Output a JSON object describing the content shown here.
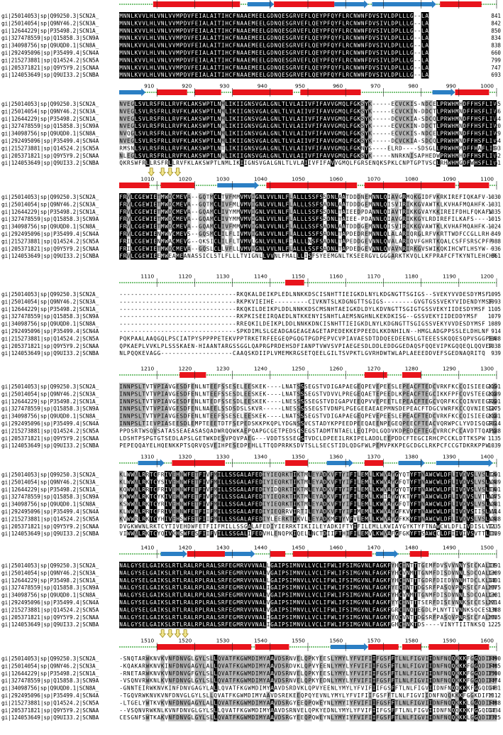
{
  "colors": {
    "helix": "#e8141c",
    "strand": "#2b7fc4",
    "coil": "#2ca02c",
    "identical": "#000000",
    "similar": "#b4b4b4",
    "arrow": "#f2e58a",
    "arrow_stroke": "#9c8a1e"
  },
  "sequence_ids": [
    "gi|25014053|sp|Q99250.3|SCN2A_",
    "gi|25014054|sp|Q9NY46.2|SCN3A_",
    "gi|12644229|sp|P35498.2|SCN1A_",
    "gi|327478559|sp|Q15858.3|SCN9A",
    "gi|34098756|sp|Q9UQD0.1|SCN8A_",
    "gi|292495096|sp|P35499.4|SCN4A",
    "gi|215273881|sp|Q14524.2|SCN5A",
    "gi|205371821|sp|Q9Y5Y9.2|SCNAA",
    "gi|124053649|sp|Q9UI33.2|SCNBA"
  ],
  "blocks": [
    {
      "ruler": [
        "810",
        "820",
        "830",
        "840",
        "850",
        "860",
        "870",
        "880",
        "890",
        "900"
      ],
      "rows": [
        "MNNLKVVLHLVNLVVMPDVFEIALAITIHCFNAAEMEELGDNQESGRVEFLQEYPFQYFLRCNWNFDVSIVLDPLLLG--LA",
        "MNNLKVVLHLVNLVVMPDVFEIALAITIHCFNAAEMEELGDNQESGRVEFLQEYPFQYFLRCNWNFDVSIVLDPLLLG--LA",
        "MNNLKVVLHLVNLVVMPDVFEIALAITIHCFNAAEMEELGDNQESGRVEFLQEYPFQYFLRCNWNFDVSIVLDPLLLG--LA",
        "MNNLKVVLHLVNLVVMPDVFEIALAITIHCFNAAEMEELGDNQESGRVEFLQEYPFQYFLRCNWNFDVSIVLDPLLLG--LA",
        "MNNLKVVLHLVNLVVMPDVFEIALAITIHCFNAAEMEELGDNQESGRVEFLQEYPFQYFLRCNWNFDVSIVLDPLLLG--LA",
        "MNNLKVVLHLVNLVVMPDVFEIALAITIHCFNAAEMEELGDNQESGRVEFLQEYPFQYFLRCNWNFDVSIVLDPLLLG--LA",
        "MNNLKVVLHLVNLVVMPDVFEIALAITIHCFNAAEMEELGDNQESGRVEFLQEYPFQYFLRCNWNFDVSIVLDPLLLG--LA",
        "MNNLKVVLHLVNLVVMPDVFEIALAITIHCFNAAEMEELGDNQESGRVEFLQEYPFQYFLRCNWNFDVSIVLDPLLLG--LA",
        "MNNLKVVLHLVNLVVMPDVFEIALAITIHCFNAAEMEELGDNQESGRVEFLQEYPFQYFLRCNWNFDVSIVLDPLLLG--LA"
      ],
      "end_numbers": [
        "841",
        "842",
        "850",
        "834",
        "838",
        "660",
        "799",
        "747",
        "693"
      ],
      "structure": [
        {
          "type": "helix",
          "from": 810,
          "to": 832
        },
        {
          "type": "strand",
          "from": 835,
          "to": 841
        },
        {
          "type": "helix",
          "from": 842,
          "to": 857
        },
        {
          "type": "strand",
          "from": 858,
          "to": 866
        },
        {
          "type": "strand",
          "from": 868,
          "to": 884
        },
        {
          "type": "helix",
          "from": 886,
          "to": 896
        }
      ],
      "arrows": []
    },
    {
      "ruler": [
        "910",
        "920",
        "930",
        "940",
        "950",
        "960",
        "970",
        "980",
        "990",
        "1000"
      ],
      "rows": [
        "NVEGLSVLRSFRLLRVFKLAKSWPTLNMLIKIIGNSVGALGNLTLVLAIIVFIFAVVGMQLFGKSYK-----ECVCKIS-NDCELPRWHMHDFFHSFLIV",
        "NVEGLSVLRSFRLLRVFKLAKSWPTLNMLIKIIGNSVGALGNLTLVLAIIVFIFAVVGMQLFGKSYK-----ECVCKIN-DDCTLPRWHMNDFFHSFLIV",
        "NVEGLSVLRSFRLLRVFKLAKSWPTLNMLIKIIGNSVGALGNLTLVLAIIVFIFAVVGMQLFGKSYK-----DCVCKIA-SDCQLPRWHMNDFFHSFLIV",
        "NVEGLSVLRSFRLLRVFKLAKSWPTLNMLIKIIGNSVGALGNLTLVLAIIVFIFAVVGMQLFGKSYK-----ECVCKIN-DDCTLPRWHMNDFFHSFLIV",
        "NVQGLSVLRSFRLLRVFKLAKSWPTLNMLIKIIGNSVGALGNLTLVLAIIVFIFAVVGMQLFGKSYK-----ECVCKIS-NDCELPRWHMNDFFHSFLIV",
        "NVEGLSVLRSFRLLRVFKLAKSWPTLNMLIKIIGNSVGALGNLTLVLAIIVFIFAVVGMQLFGKSYK-----DCVCKIA-SDCQLPRWHMNDFFHSFLIV",
        "RMSNLSVLRSFRLLRVFKLAKSWPTLNTLIKIIGNSVGALGNLTLVLAIIVFIFAVVGMQLFGKNYS----ELRD----SDSGLLPRWHMMDFFHAFLII",
        "NLEGLSVLRSFRLLRVFKLAKSWPTLNMLIKIIGNSVGALGNLTLVLAIIVFIFAVVGMQLFGKSYK-----NNRKNISAPHEDWPRWHMHDFFHSFLIV",
        "QKRSWFRLLRSFRLLRVFKLAKSWPTLNMLIKIIGNSVGALGNLTLVLAIIVFIFAVVGMQLFGRSENQKSPKLCNPTGPTVSCLRHWHMGDFWHSFLIV"
      ],
      "end_numbers": [
        "935",
        "936",
        "944",
        "920",
        "929",
        "754",
        "893",
        "842",
        "761"
      ],
      "structure": [
        {
          "type": "strand",
          "from": 901,
          "to": 907
        },
        {
          "type": "helix",
          "from": 911,
          "to": 918
        },
        {
          "type": "helix",
          "from": 921,
          "to": 927
        },
        {
          "type": "helix",
          "from": 931,
          "to": 946
        },
        {
          "type": "helix",
          "from": 949,
          "to": 964
        },
        {
          "type": "strand",
          "from": 984,
          "to": 989
        },
        {
          "type": "helix",
          "from": 990,
          "to": 998
        }
      ],
      "arrows": [
        909,
        912,
        914,
        916
      ]
    },
    {
      "ruler": [
        "1010",
        "1020",
        "1030",
        "1040",
        "1050",
        "1060",
        "1070",
        "1080",
        "1090",
        "1100"
      ],
      "rows": [
        "FRVLCGEWIETMWDCMEVA--GQTMCLTVFMMVMVIGNLVVLNLFLALLLSSFSSDNLAATDDDNEMNNLQIAVGRMQKGIDFVKRKIREFIQKAFV--",
        "FRVLCGEWIETMWDCMEVA--GQTMCLIVFMLVMVIGNLVVLNLFLALLLSSFSADNLAATDDDGEMNNLQISVIRIKKGVAWTKLKVHAFMQAHFK--",
        "FRVLCGEWIETMWDCMEVA--GQAMCLIVYMMVMVIGNLVVLNLFLALLLSSFSSDNLTAIEEDPDANNLQIAVTRIKKGVAYKKIREIFDHLFQKAFV",
        "FRVLCGEWIETMWDCMEVA--GQAMCLIVYMMVMVIGNLVVLNLFLALLLSSFSSDNLTAIEE-PDANNLQIAVGRIKKGYLRDIREFILKAFS-----",
        "FRVLCGEWIETMWDCMEVA--GQAMCLIVFMMVMVIGNLVVLNLFLALLLSSFSADNLAATDDDGEMNNLQISVIRIKKGVAWTKLKVHAFMQAHFK--",
        "FRVLCGEWIENMWVCMEVS--GQSMCLILFLIVMVIGNLVVLNLFLALLLSSFSADNLTAPDEDREMNNLQLALARIQRGLRFVKRTTWDFCCGLLRH-",
        "FRILCGEWIENMWACMEVG--QKSICLILFLTVMVLGNLVVLNLFIALLLNSFSADNLTAPEDDGEVNNLQVALARIQVFGHRTKQALCSFFSRSCPFP",
        "FRILCGEWIETMWDCMEVA--GQSLCLLVFLLVMVIGNLVVLNLFLALLLSSFSADNLTAPDEDGEVNNLQVAVNRIRKGVSWIKQKIHCWTLHSYW--",
        "FRVLCGEWIEEMWEAMEANASSICLSTLFLLLTVIGNLLVVNLFMALLLISFSYEEMGNLTKSEERGVLGGGARKTKVQLLKFPRAFCFTKYNTLEHCHRK"
      ],
      "end_numbers": [
        "1030",
        "1031",
        "1035",
        "1015",
        "1024",
        "849",
        "988",
        "936",
        "861"
      ],
      "structure": [
        {
          "type": "helix",
          "from": 1001,
          "to": 1008
        },
        {
          "type": "helix",
          "from": 1012,
          "to": 1020
        },
        {
          "type": "strand",
          "from": 1027,
          "to": 1037
        },
        {
          "type": "helix",
          "from": 1040,
          "to": 1063
        },
        {
          "type": "helix",
          "from": 1066,
          "to": 1089
        },
        {
          "type": "helix",
          "from": 1091,
          "to": 1098
        }
      ],
      "arrows": []
    },
    {
      "ruler": [
        "1110",
        "1120",
        "1130",
        "1140",
        "1150",
        "1160",
        "1170",
        "1180",
        "1190",
        "1200"
      ],
      "rows": [
        "-------------------------------RKQKALDEIKPLEDLNNKKDSCISNHTTIEIGKDLNYLKDGNGTTSGIGS--SVEKYVVDESDYMSF",
        "-------------------------------RKPKVIEIHE---------CIVKNTSLKDGNGTTSGIGS--------GVGTGSSVEKYVIDENDYMSF",
        "-------------------------------RKQKILDEIKPLDDLNNKKDSCMSNHTAEIGKDLDYLKDVNGTTSGIGTGSSVEKYIIDESDYMSF",
        "-------------------------------RKPKISEEIRQAEDLNTKKENYISNHTLAEMSNGHNLKEKDKISG--GSSVEKYIIDEDDYMSF",
        "-------------------------------RREQKILDEIKPLDDLNNKKDNCISNHTTIEIGKDLNYLKDGNGTTSGIGSSVEKYVVDESDYMSF",
        "-------------------------------SPKDIMLSLGEADGAGEAGEAGETAPEDEKKEPPEEDLKKDNHILN--HMGLADGPPSSLELDHLNF",
        "PQKPAALAAQGQLPSCIATPYSPPPPETEKVPPTRKETRFEEGEQPGQGTPGDPEPVCVPIAVAESDTDDQEEDEENSLGTEEESSKQQESQPVSGGPEA",
        "QPKAEPLVVKLPLSSSKAEN-HIAANTARGSSGGLQAPRGPRDEHSDFIANPTVWVSVPIAEGESDLDDLEDDGGEDAQSFQQEVIPKGQQEQLQQVER",
        "NLPQQKEVAGG-------------------CAAQSKDIIPLVMEMKRGSETQEELGILTSVPKTLGVRHDWTWLAPLAEEEDDVEFSGEDNAQRITQ"
      ],
      "end_numbers": [
        "1095",
        "1093",
        "1105",
        "1079",
        "1089",
        "914",
        "1088",
        "1038",
        "939"
      ],
      "structure": [
        {
          "type": "helix",
          "from": 1145,
          "to": 1149
        }
      ],
      "arrows": []
    },
    {
      "ruler": [
        "1210",
        "1220",
        "1230",
        "1240",
        "1250",
        "1260",
        "1270",
        "1280",
        "1290",
        "1300"
      ],
      "rows": [
        "INNPSLTVTVPIAVGESDFENLNTEEFSSESELEESKEK----LNATSSSEGSTVDIGAPAEGEQPEVEPEESLEPEACFTEDCVRKFKCCQISIEEGKG",
        "INNPSLTVTVPIAVGESDFENLNTEEFSSESDLEESKEK----LNATSSSEGSTVDVVLPREGEQAETEPEEDLKPEACFTEGCIKKFPFCQVSTEEGKG",
        "INNPSLTVTVPIAVGESDFENLNTEDFSSESDLEESKEK----LNESSSSSEGSTVDIGAPVEEQPVVEPEETLEPEACFTEGCVQRFKCCQINVEEGRG",
        "INNPSLTVTVPIAVGESDFENLNAEELSSDSDSLSKVR-----LNESSSSSEGSTVDNPLPGEGEEAEAEPMNSDEPEACFTDGCVWRFKCCQVNIESGKG",
        "INNPSLTVTVPIAVGESDFENLNTEEFSSESELEESKEK----LNATSSSEGSTVDIGAPAEGEQPEVEPEESLEPEACFTEDCVRKFKCCQISIEEGKG",
        "INNPSLTIEVPIASEESDLEMPTEEETDTFSEPEDSKKPKQPLYDGNSSVCSTADYKPPEEDPEEQAEENPEGEQPEECFTEACVQRWPCLYVDISQGRG",
        "PPDSRTWSQVSATASSEAEASASQADWRQQWKAEPQAPGCGETPEDSCSEGSTADMTNTAELLEQIPDLGQDVKDPEDCFTEGCVRRCPCCAVDTTQAPG",
        "LDSHTPSPGTGTSEDLAPSLGETWKDESVPQVPAEG---VDDTSSSEGSTVDCLDPEEILRKIPELADDLEEPDDCFTEGCIRHCPCCKLDTTKSPW",
        "PEPEQQAYELHQENKKPTSQRVQSVEIHPESEDPEHLLTTQDPRRKSDVTSLLSECSTIDLQDGFWLPEMVPKKPEGCDGCLRKPCFCCGTDKRKPPW"
      ],
      "end_numbers": [
        "1191",
        "1189",
        "1201",
        "1175",
        "1181",
        "1014",
        "1188",
        "1135",
        "1039"
      ],
      "structure": [
        {
          "type": "helix",
          "from": 1217,
          "to": 1223
        },
        {
          "type": "helix",
          "from": 1266,
          "to": 1271
        },
        {
          "type": "helix",
          "from": 1276,
          "to": 1280
        }
      ],
      "arrows": []
    },
    {
      "ruler": [
        "1310",
        "1320",
        "1330",
        "1340",
        "1350",
        "1360",
        "1370",
        "1380",
        "1390",
        "1400"
      ],
      "rows": [
        "KLWWNLRRTCFRIVEHNWFETFIVFMILLSSGALAFEDIYIEQRKTIKTMLEYADKVFTYIFILEMLLKWVAYGYQTYFTNAWCWLDFLIVDVSLVSLTA",
        "KLWWNLRKTCYSIVEHNWFETFIVFMILLSSGALAFEDIYIEQRKTIKTMLEYADKVFTYIFILEMLLKWVAYGFQTYFTNAWCWLDFLIVDVSLVSLVA",
        "KQWWNLRRTCFRIVEHNWFETFIVFMILLSSGALAFEDIYIDQRKTIKTMLEYADKVFTYIFILEMLLKWVAYGYQTYFTNAWCWLDFLIVDVSLVSLTA",
        "KMWWNLRKTCYKIVEHNWFETFIVFMILLSSGALAFEDIYIEQRKTIKTMLEYADKVFTYIFILEMLLKWIAYGYKTYFTNAWCWLDFLIVDVSLVTLVA",
        "KSWWNLRKTCYRIVEHNWFETFIVFMILLSSGALAFEDIYIEQRKTIKTMLEYADKVFTYIFILEMLLKWVAYGFQTYFTNAWCWLDFLIVDVSLVSLVA",
        "KLWWNLRRTCFRIVEHNWFETFIIFMILLSSGALAFEDIYIEQRRVIRTILEYADKVFTYIFIMEMLLKWVAYGFKVYFTNAWCWLDFLIVDVSIISLVA",
        "KVWWRLRKTCYHIVEHSWFETFIIFMILLSSGALAFEDIYLEERKTIKVLLEYADKMFTYVFVLEMLLKWVAYGFKKYFTNAWCWLDFLIVDVSLVSLVA",
        "DVGKWWNLRKTCYTIVEHDWFETFIIFMILLSSGALAFEDIYIERRKTIKIILEYADKIFTYIFILEMLLKWIAYGYKTYFTNAWCWLDFLIVDISLVTLVA",
        "VIWWNLRKTCYQIVKHSWFESFIIFVILLSSGALIFEDVHLENQPKIQELLNCTDIIFTHIFILEMVLKWVAFGFGKYFTSAWCCLDFIIVIVSVTTLIN"
      ],
      "end_numbers": [
        "1291",
        "1289",
        "1301",
        "1275",
        "1281",
        "1114",
        "1288",
        "1235",
        "1139"
      ],
      "structure": [
        {
          "type": "strand",
          "from": 1306,
          "to": 1312
        },
        {
          "type": "helix",
          "from": 1315,
          "to": 1328
        },
        {
          "type": "helix",
          "from": 1345,
          "to": 1350
        },
        {
          "type": "strand",
          "from": 1356,
          "to": 1362
        },
        {
          "type": "helix",
          "from": 1366,
          "to": 1370
        },
        {
          "type": "strand",
          "from": 1375,
          "to": 1381
        },
        {
          "type": "strand",
          "from": 1385,
          "to": 1399
        }
      ],
      "arrows": []
    },
    {
      "ruler": [
        "1410",
        "1420",
        "1430",
        "1440",
        "1450",
        "1460",
        "1470",
        "1480",
        "1490",
        "1500"
      ],
      "rows": [
        "NALGYSELGAIKSLRTLRALRPLRALSRFEGMRVVVNALLGAIPSIMNVLLVCLIFWLIFSIMGVNLFAGKFYHCINTTTGEMFDVSVVNNYSECKALIE",
        "NALGYSELGAIKSLRTLRALRPLRALSRFEGMRVVVNALVGAIPSIMNVLLVCLIFWLIFSIMGVNLFAGKFYHCVNMTTGNMFDISDVNNLSDCQALGK",
        "NALGYSELGAIKSLRTLRALRPLRALSRFEGMRVVVNALLGAIPSIMNVLLVCLIFWLIFSIMGVNLFAGKFYHCINTTTGDRFDIEDVNNHTDCLKLIE",
        "NALGYSELGAIKSLRTLRALRPLRALSRFEGMRVVVNALIGAIPSIMNVLLVCLIFWLIFSIMGVNLFAGKFYECINTTDGSRFPASQVPNRSECFALMN",
        "NALGYSELGAIKSLRTLRALRPLRALSRFEGMRVVVNALVGAIPSIMNVLLVCLIFWLIFSIMGVNLFAGKFYHCVNMTTGNMFDISDVNNLSDCQALGK",
        "NALGYSELGAIKSLRTLRALRPLRALSRFEGMRVVVNALVGAIPSIMNVLLVCLIFWLIFSIMGVNLFAGKFYYCINTTTSERFDISEVNNKSECESLME",
        "NALGYSELGAIKSLRTLRALRPLRALSRFEGMRVVVNALVGAIPSIMNVLLVCLIFWLIFSIMGVNLFAGKFGRCINQTEGDLPLNYTIVNNKSQCESLN",
        "NALGYSELGAIKSLRTLRALRPLRALSRFEGMRVVVNALIGAIPSIMNVLLVCLIFWLIFSIMGVNLFAGKFYQCVNTTDGSRFPASQVPNRSECFALMN",
        "NALGYSELGAIKSLRTLRALRPLRALSRFEGMRVVVNALIGAIPSIMNVLLVCLIFWLIFSIMGVNLFAGKFGHCINKTDS----VINYTIITNKSQ"
      ],
      "end_numbers": [
        "1391",
        "1389",
        "1401",
        "1375",
        "1381",
        "1214",
        "1388",
        "1335",
        "1225"
      ],
      "structure": [
        {
          "type": "strand",
          "from": 1412,
          "to": 1418
        },
        {
          "type": "helix",
          "from": 1419,
          "to": 1428
        },
        {
          "type": "strand",
          "from": 1429,
          "to": 1436
        },
        {
          "type": "helix",
          "from": 1441,
          "to": 1444
        },
        {
          "type": "helix",
          "from": 1447,
          "to": 1467
        },
        {
          "type": "strand",
          "from": 1469,
          "to": 1474
        },
        {
          "type": "helix",
          "from": 1478,
          "to": 1482
        }
      ],
      "arrows": [
        1412,
        1414,
        1416,
        1418
      ]
    },
    {
      "ruler": [
        "1510",
        "1520",
        "1530",
        "1540",
        "1550",
        "1560",
        "1570",
        "1580",
        "1590",
        "1600"
      ],
      "rows": [
        "-SNQTARWKNVKVNFDNVGLGYLSLLQVATFKGWMDIMYAAVDSRNVELQPKYEESLYMYLYFVIFIIFGSFFTLNLFIGVIIDNFNQQKKKFGGQDIFM",
        "-KQAKARWKNVKINFDNVGAGYLALLQVATFKGWMDIMYAAVDSRDVKLQPVYEENLYMYLYFVIFIIFGSFFTLNLFIGVIIDNFNQQKKKFGGQDIFM",
        "-RNETARWKNVKVNFDNVGFGYLSLLQVATFKGWMDIMYAAVDSRNVELQPKYEESLYMYLYFVIFIIFGSFFTLNLFIGVIIDNFNQQKKKFGGQDIFM",
        "-VSQNVRWKNLKVNFDNVGLGYLSLLQVATFKGWMDIMYAAVDSRNVELQPKYEDNLYMYLYFVIFIIFGSFFTLNLFIGVIIDNFNQQKKKFGGQDIFM",
        "-GNNTEIRWKNVKINFDNVGAGYLALLQVATFKGWMDIMYAAVDSRDVKLQPVYEENLYMYLYFVIFIIFGSFFTLNLFIGVIIDNFNQQKKKFGGQDIFM",
        "-TGQVRWKNVKVNFDNVGLGYLSLLQVATFKGWMDIMYAAVDSREKEEQPQYEVNLYMYLYFVIFIIFGSFFTLNLFIGVIIDNFNQQKKKFGGKDIFM",
        "-LTGELYWTKVKVNFDNVGAGYLALLQVATFKGWMDIMYAAVDSRGYEEQPQWEYNLYMYIYFVIFIIFGSFFTLNLFIGVIIDNFNQQKKKLGGQDIFM",
        "--VSQNVRWKNLKVNFDNVGLGYLSLLQVATFKGWMDIMYAAVDSRNVELQPKYEDNLYMYLYFVIFIIFGSFFTLNLFIGVIIDNFNQQKKKFGGQDIFM",
        "CESGNFSWTKAKVNFDNVGLGYLSLLQVATFKGWMDIMYAAVDSRGYEEQPQWEYNLYMYIYFVIFIIFGSFFTLNLFIGVIIDNFNQQKKKLGGQDIFM"
      ],
      "end_numbers": [
        "1490",
        "1485",
        "1500",
        "1474",
        "1481",
        "1312",
        "1488",
        "1434",
        "1325"
      ],
      "structure": [
        {
          "type": "helix",
          "from": 1511,
          "to": 1519
        },
        {
          "type": "helix",
          "from": 1520,
          "to": 1535
        },
        {
          "type": "helix",
          "from": 1537,
          "to": 1545
        },
        {
          "type": "strand",
          "from": 1557,
          "to": 1566
        },
        {
          "type": "helix",
          "from": 1567,
          "to": 1574
        },
        {
          "type": "helix",
          "from": 1576,
          "to": 1580
        },
        {
          "type": "helix",
          "from": 1583,
          "to": 1598
        }
      ],
      "arrows": []
    }
  ]
}
